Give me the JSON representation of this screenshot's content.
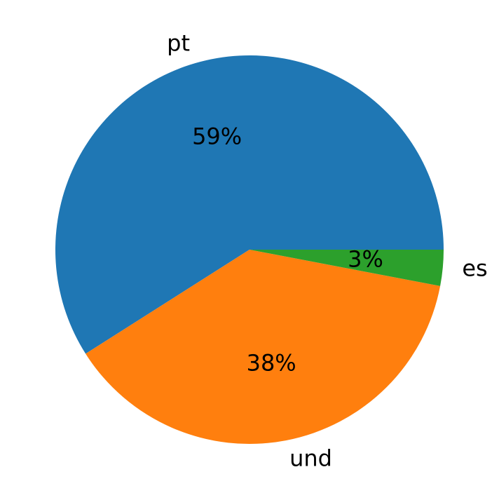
{
  "chart_data": {
    "type": "pie",
    "categories": [
      "pt",
      "und",
      "es"
    ],
    "values": [
      59,
      38,
      3
    ],
    "value_labels": [
      "59%",
      "38%",
      "3%"
    ],
    "colors": [
      "#1f77b4",
      "#ff7f0e",
      "#2ca02c"
    ]
  }
}
